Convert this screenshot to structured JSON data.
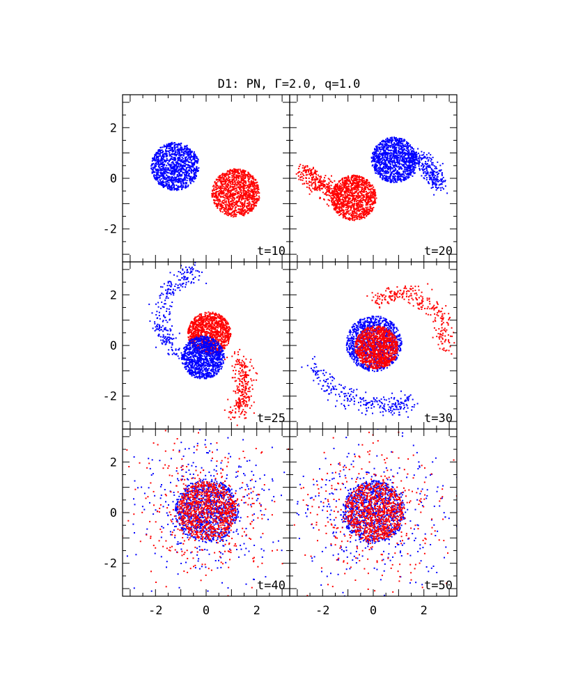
{
  "chart_data": {
    "type": "scatter",
    "title": "D1: PN, Γ=2.0, q=1.0",
    "layout": "3 rows x 2 columns",
    "xlim": [
      -3.3,
      3.3
    ],
    "ylim": [
      -3.3,
      3.3
    ],
    "xticks": [
      -2,
      0,
      2
    ],
    "yticks": [
      -2,
      0,
      2
    ],
    "xlabel": "",
    "ylabel": "",
    "series_colors": {
      "star_1": "#0000ff",
      "star_2": "#ff0000"
    },
    "panels": [
      {
        "label": "t=10",
        "stars": [
          {
            "color": "blue",
            "center": [
              -1.25,
              0.5
            ],
            "radius": 0.95
          },
          {
            "color": "red",
            "center": [
              1.15,
              -0.55
            ],
            "radius": 0.95
          }
        ],
        "tails": []
      },
      {
        "label": "t=20",
        "stars": [
          {
            "color": "blue",
            "center": [
              0.8,
              0.75
            ],
            "radius": 0.9
          },
          {
            "color": "red",
            "center": [
              -0.8,
              -0.75
            ],
            "radius": 0.9
          }
        ],
        "tails": [
          {
            "color": "blue",
            "points": [
              [
                1.6,
                0.9
              ],
              [
                2.2,
                0.3
              ],
              [
                2.6,
                -0.2
              ]
            ]
          },
          {
            "color": "red",
            "points": [
              [
                -1.6,
                -0.6
              ],
              [
                -2.3,
                -0.1
              ],
              [
                -2.8,
                0.3
              ]
            ]
          }
        ]
      },
      {
        "label": "t=25",
        "stars": [
          {
            "color": "red",
            "center": [
              0.1,
              0.5
            ],
            "radius": 0.85
          },
          {
            "color": "blue",
            "center": [
              -0.15,
              -0.45
            ],
            "radius": 0.85
          }
        ],
        "tails": [
          {
            "color": "blue",
            "points": [
              [
                -1.2,
                -0.3
              ],
              [
                -1.9,
                0.8
              ],
              [
                -1.5,
                2.3
              ],
              [
                -0.4,
                3.0
              ]
            ]
          },
          {
            "color": "red",
            "points": [
              [
                1.3,
                -0.5
              ],
              [
                1.5,
                -1.6
              ],
              [
                1.2,
                -2.7
              ]
            ]
          }
        ]
      },
      {
        "label": "t=30",
        "stars": [
          {
            "color": "blue",
            "center": [
              0,
              0.1
            ],
            "radius": 1.1
          },
          {
            "color": "red",
            "center": [
              0.1,
              -0.05
            ],
            "radius": 0.85
          }
        ],
        "tails": [
          {
            "color": "red",
            "points": [
              [
                0.0,
                1.8
              ],
              [
                1.4,
                2.2
              ],
              [
                2.6,
                1.2
              ],
              [
                2.9,
                0.0
              ]
            ]
          },
          {
            "color": "blue",
            "points": [
              [
                -2.5,
                -0.7
              ],
              [
                -1.3,
                -2.0
              ],
              [
                0.5,
                -2.4
              ],
              [
                1.5,
                -2.2
              ]
            ]
          }
        ]
      },
      {
        "label": "t=40",
        "stars": [
          {
            "color": "blue",
            "center": [
              0,
              0.1
            ],
            "radius": 1.25
          },
          {
            "color": "red",
            "center": [
              0,
              0.1
            ],
            "radius": 1.15
          }
        ],
        "tails": []
      },
      {
        "label": "t=50",
        "stars": [
          {
            "color": "blue",
            "center": [
              0,
              0.05
            ],
            "radius": 1.25
          },
          {
            "color": "red",
            "center": [
              0,
              0.05
            ],
            "radius": 1.15
          }
        ],
        "tails": []
      }
    ]
  }
}
